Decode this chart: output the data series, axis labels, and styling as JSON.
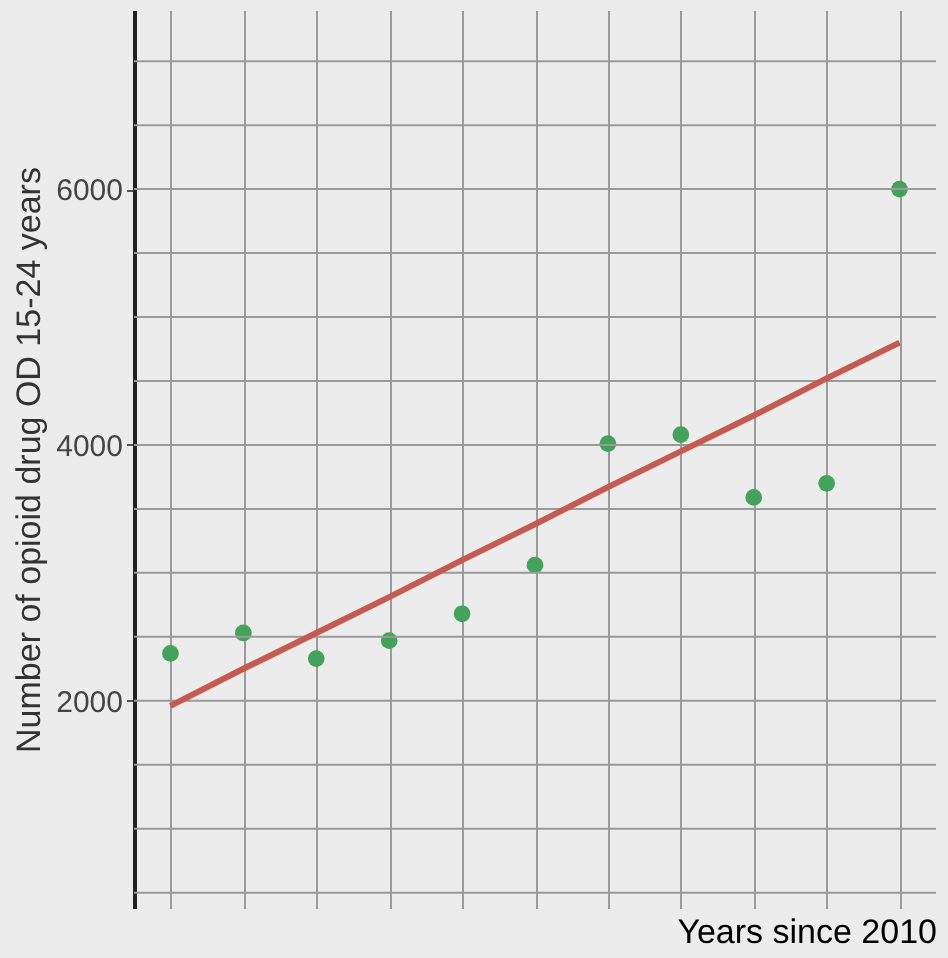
{
  "chart_data": {
    "type": "scatter",
    "xlabel": "Years since 2010",
    "ylabel": "Number of opioid drug OD 15-24 years",
    "categories": [
      null,
      null,
      null,
      null,
      null,
      null,
      null,
      null,
      null,
      null,
      null
    ],
    "ylim": [
      380,
      7400
    ],
    "yticks": [
      {
        "value": 500,
        "label": null
      },
      {
        "value": 1000,
        "label": null
      },
      {
        "value": 1500,
        "label": null
      },
      2000,
      {
        "value": 2500,
        "label": null
      },
      {
        "value": 3000,
        "label": null
      },
      {
        "value": 3500,
        "label": null
      },
      4000,
      {
        "value": 4500,
        "label": null
      },
      {
        "value": 5000,
        "label": null
      },
      {
        "value": 5500,
        "label": null
      },
      6000,
      {
        "value": 6500,
        "label": null
      },
      {
        "value": 7000,
        "label": null
      }
    ],
    "grid": true,
    "tick_labels": "y",
    "series": [
      {
        "type": "scatter",
        "marker": "circle",
        "color": "#43a35a",
        "values": [
          2370,
          2530,
          2330,
          2470,
          2680,
          3060,
          4010,
          4080,
          3590,
          3700,
          6000
        ]
      },
      {
        "type": "line",
        "marker": "none",
        "color": "#c45a52",
        "line_style": "solid",
        "values": [
          1960,
          2250,
          2530,
          2810,
          3100,
          3380,
          3670,
          3950,
          4230,
          4520,
          4800
        ]
      }
    ]
  }
}
